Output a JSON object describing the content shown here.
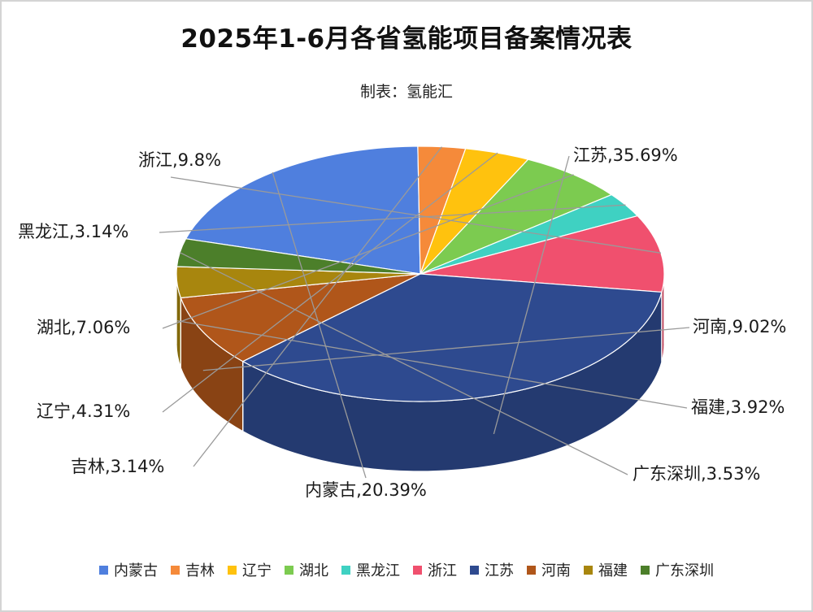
{
  "chart_data": {
    "type": "pie",
    "title": "2025年1-6月各省氢能项目备案情况表",
    "subtitle": "制表：氢能汇",
    "legend_position": "bottom",
    "slices": [
      {
        "name": "内蒙古",
        "value": 20.39,
        "label": "内蒙古,20.39%",
        "color": "#4F7FDE"
      },
      {
        "name": "吉林",
        "value": 3.14,
        "label": "吉林,3.14%",
        "color": "#F58A3A"
      },
      {
        "name": "辽宁",
        "value": 4.31,
        "label": "辽宁,4.31%",
        "color": "#FFC20E"
      },
      {
        "name": "湖北",
        "value": 7.06,
        "label": "湖北,7.06%",
        "color": "#7CCB50"
      },
      {
        "name": "黑龙江",
        "value": 3.14,
        "label": "黑龙江,3.14%",
        "color": "#3FD1C2"
      },
      {
        "name": "浙江",
        "value": 9.8,
        "label": "浙江,9.8%",
        "color": "#F0506E"
      },
      {
        "name": "江苏",
        "value": 35.69,
        "label": "江苏,35.69%",
        "color": "#2E4A8F"
      },
      {
        "name": "河南",
        "value": 9.02,
        "label": "河南,9.02%",
        "color": "#B0561A"
      },
      {
        "name": "福建",
        "value": 3.92,
        "label": "福建,3.92%",
        "color": "#A8860E"
      },
      {
        "name": "广东深圳",
        "value": 3.53,
        "label": "广东深圳,3.53%",
        "color": "#4C7F2A"
      }
    ]
  }
}
